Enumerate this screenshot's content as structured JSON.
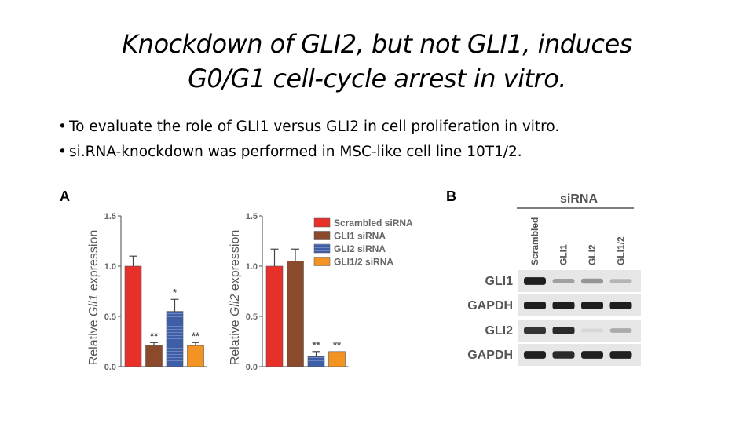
{
  "slide": {
    "title_line1": "Knockdown of GLI2, but not GLI1, induces",
    "title_line2": "G0/G1 cell-cycle arrest in vitro.",
    "bullets": [
      "To evaluate the role of GLI1 versus GLI2 in cell proliferation in vitro.",
      "si.RNA-knockdown was performed in MSC-like cell line 10T1/2."
    ],
    "panel_a_label": "A",
    "panel_b_label": "B"
  },
  "colors": {
    "scrambled": "#e8302b",
    "gli1": "#8b4a2b",
    "gli2": "#3e5ea8",
    "gli12": "#f39322"
  },
  "chart_data": [
    {
      "type": "bar",
      "ylabel_prefix": "Relative ",
      "ylabel_gene": "Gli1",
      "ylabel_suffix": " expression",
      "yticks": [
        "0.0",
        "0.5",
        "1.0",
        "1.5"
      ],
      "ylim": [
        0,
        1.5
      ],
      "categories": [
        "Scrambled siRNA",
        "GLI1 siRNA",
        "GLI2 siRNA",
        "GLI1/2 siRNA"
      ],
      "values": [
        1.0,
        0.21,
        0.55,
        0.21
      ],
      "errors": [
        0.1,
        0.03,
        0.12,
        0.03
      ],
      "significance": [
        "",
        "**",
        "*",
        "**"
      ]
    },
    {
      "type": "bar",
      "ylabel_prefix": "Relative ",
      "ylabel_gene": "Gli2",
      "ylabel_suffix": " expression",
      "yticks": [
        "0.0",
        "0.5",
        "1.0",
        "1.5"
      ],
      "ylim": [
        0,
        1.5
      ],
      "categories": [
        "Scrambled siRNA",
        "GLI1 siRNA",
        "GLI2 siRNA",
        "GLI1/2 siRNA"
      ],
      "values": [
        1.0,
        1.05,
        0.1,
        0.15
      ],
      "errors": [
        0.17,
        0.12,
        0.05,
        0.0
      ],
      "significance": [
        "",
        "",
        "**",
        "**"
      ],
      "legend": [
        "Scrambled siRNA",
        "GLI1 siRNA",
        "GLI2 siRNA",
        "GLI1/2 siRNA"
      ]
    }
  ],
  "western_blot": {
    "header": "siRNA",
    "lanes": [
      "Scrambled",
      "GLI1",
      "GLI2",
      "GLI1/2"
    ],
    "rows": [
      "GLI1",
      "GAPDH",
      "GLI2",
      "GAPDH"
    ],
    "band_intensity": [
      [
        0.95,
        0.35,
        0.4,
        0.25
      ],
      [
        0.95,
        0.95,
        0.95,
        0.95
      ],
      [
        0.85,
        0.9,
        0.1,
        0.3
      ],
      [
        0.95,
        0.9,
        0.95,
        0.95
      ]
    ]
  }
}
